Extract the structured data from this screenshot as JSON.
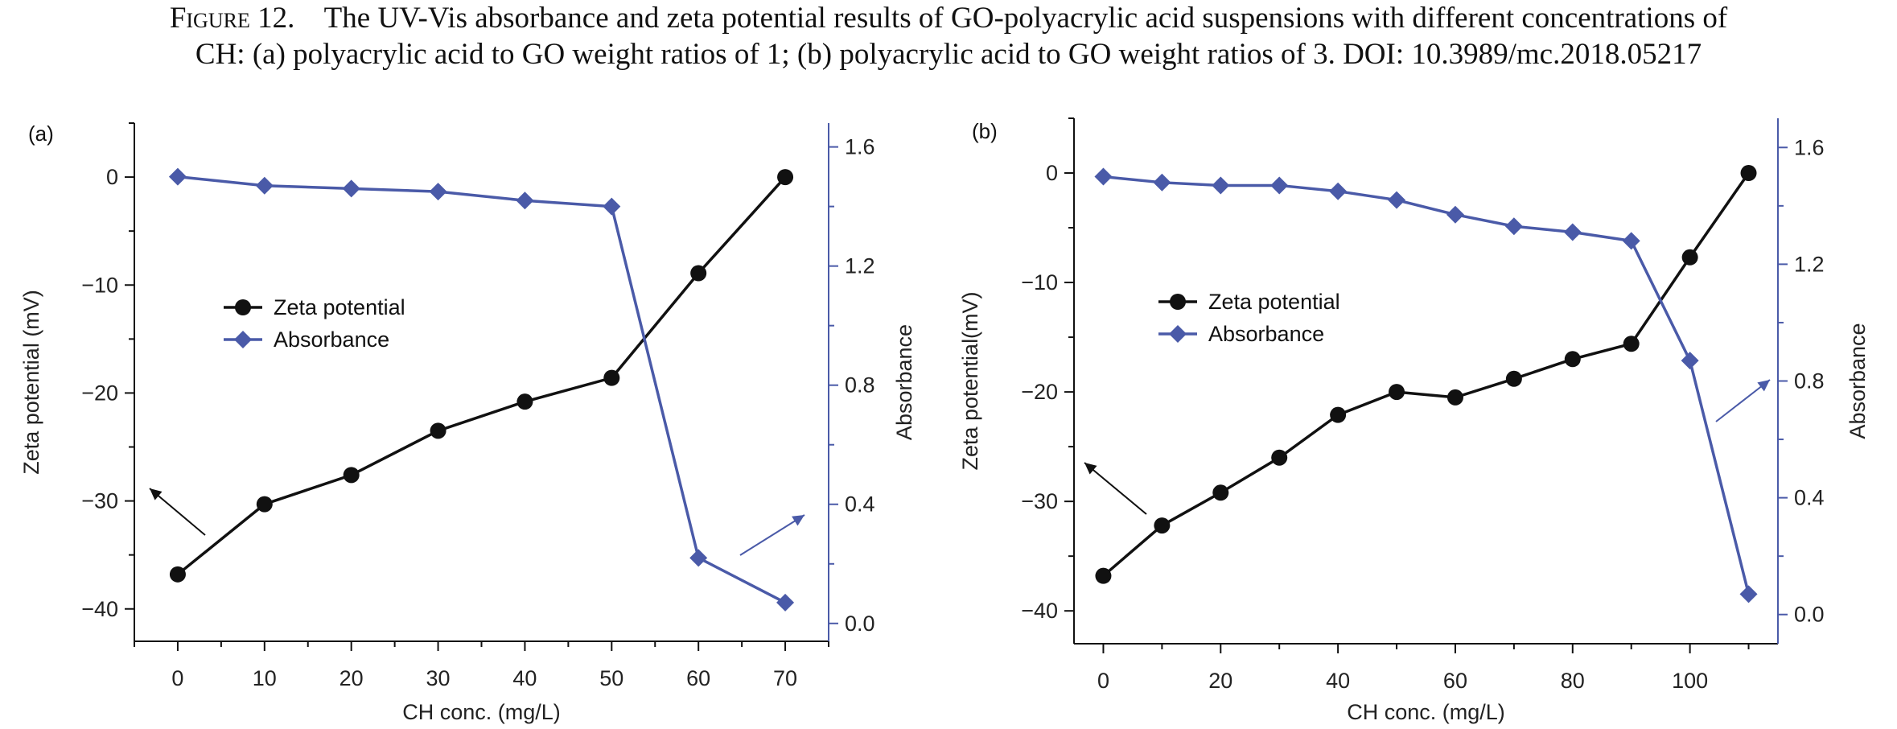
{
  "caption": {
    "prefix": "Figure 12.",
    "line1": "The UV-Vis absorbance and zeta potential results of GO-polyacrylic acid suspensions with different concentrations of",
    "line2": "CH: (a) polyacrylic acid to GO weight ratios of 1; (b) polyacrylic acid to GO weight ratios of 3. DOI: 10.3989/mc.2018.05217"
  },
  "colors": {
    "zeta": "#111111",
    "absorbance": "#4a5aa8"
  },
  "chart_data": [
    {
      "type": "line",
      "panel_label": "(a)",
      "xlabel": "CH conc. (mg/L)",
      "ylabel": "Zeta potential (mV)",
      "y2label": "Absorbance",
      "xlim": [
        -5,
        75
      ],
      "ylim": [
        -43,
        5
      ],
      "y2lim": [
        -0.06,
        1.68
      ],
      "xticks": [
        0,
        10,
        20,
        30,
        40,
        50,
        60,
        70
      ],
      "yticks": [
        0,
        -10,
        -20,
        -30,
        -40
      ],
      "y2ticks": [
        0.0,
        0.4,
        0.8,
        1.2,
        1.6
      ],
      "legend_position": "center-left",
      "series": [
        {
          "name": "Zeta potential",
          "axis": "left",
          "marker": "circle",
          "x": [
            0,
            10,
            20,
            30,
            40,
            50,
            60,
            70
          ],
          "values": [
            -36.8,
            -30.3,
            -27.6,
            -23.5,
            -20.8,
            -18.6,
            -8.9,
            0
          ]
        },
        {
          "name": "Absorbance",
          "axis": "right",
          "marker": "diamond",
          "x": [
            0,
            10,
            20,
            30,
            40,
            50,
            60,
            70
          ],
          "values": [
            1.5,
            1.47,
            1.46,
            1.45,
            1.42,
            1.4,
            0.22,
            0.07
          ]
        }
      ]
    },
    {
      "type": "line",
      "panel_label": "(b)",
      "xlabel": "CH conc. (mg/L)",
      "ylabel": "Zeta potential(mV)",
      "y2label": "Absorbance",
      "xlim": [
        -5,
        115
      ],
      "ylim": [
        -43,
        5
      ],
      "y2lim": [
        -0.1,
        1.7
      ],
      "xticks": [
        0,
        20,
        40,
        60,
        80,
        100
      ],
      "yticks": [
        0,
        -10,
        -20,
        -30,
        -40
      ],
      "y2ticks": [
        0.0,
        0.4,
        0.8,
        1.2,
        1.6
      ],
      "legend_position": "center-left",
      "series": [
        {
          "name": "Zeta potential",
          "axis": "left",
          "marker": "circle",
          "x": [
            0,
            10,
            20,
            30,
            40,
            50,
            60,
            70,
            80,
            90,
            100,
            110
          ],
          "values": [
            -36.8,
            -32.2,
            -29.2,
            -26.0,
            -22.1,
            -20.0,
            -20.5,
            -18.8,
            -17.0,
            -15.6,
            -7.7,
            0
          ]
        },
        {
          "name": "Absorbance",
          "axis": "right",
          "marker": "diamond",
          "x": [
            0,
            10,
            20,
            30,
            40,
            50,
            60,
            70,
            80,
            90,
            100,
            110
          ],
          "values": [
            1.5,
            1.48,
            1.47,
            1.47,
            1.45,
            1.42,
            1.37,
            1.33,
            1.31,
            1.28,
            0.87,
            0.07
          ]
        }
      ]
    }
  ]
}
